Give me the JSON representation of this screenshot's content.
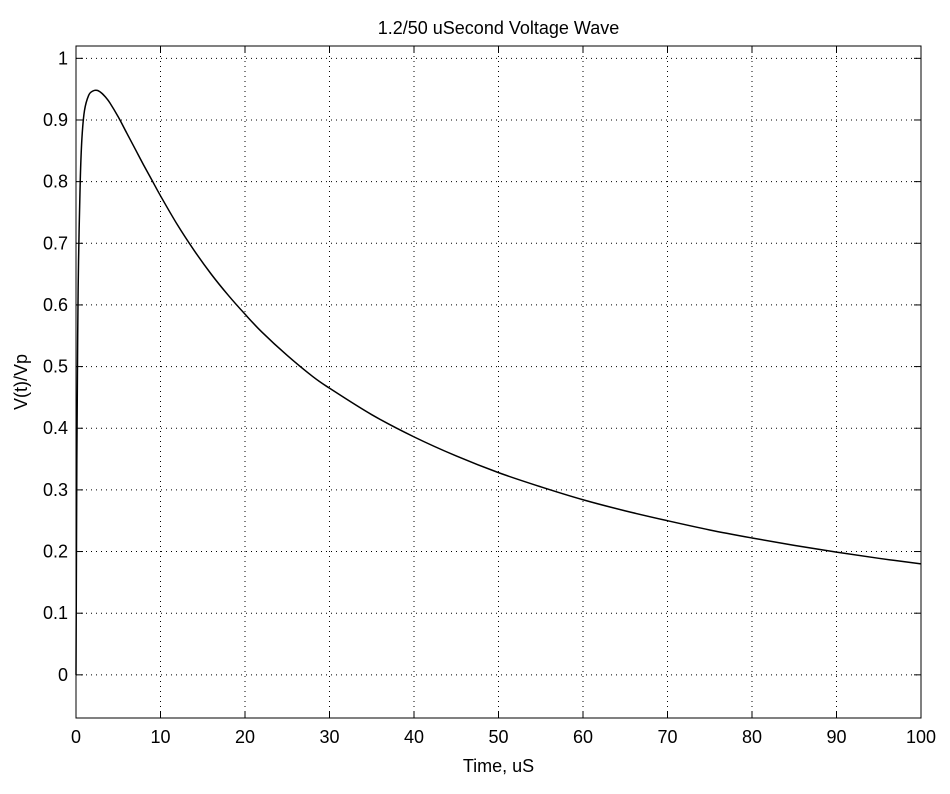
{
  "chart_data": {
    "type": "line",
    "title": "1.2/50 uSecond Voltage Wave",
    "xlabel": "Time, uS",
    "ylabel": "V(t)/Vp",
    "xlim": [
      0,
      100
    ],
    "ylim": [
      -0.07,
      1.02
    ],
    "grid": true,
    "grid_style": "dotted",
    "x_ticks": [
      0,
      10,
      20,
      30,
      40,
      50,
      60,
      70,
      80,
      90,
      100
    ],
    "y_ticks": [
      0,
      0.1,
      0.2,
      0.3,
      0.4,
      0.5,
      0.6,
      0.7,
      0.8,
      0.9,
      1
    ],
    "x_tick_labels": [
      "0",
      "10",
      "20",
      "30",
      "40",
      "50",
      "60",
      "70",
      "80",
      "90",
      "100"
    ],
    "y_tick_labels": [
      "0",
      "0.1",
      "0.2",
      "0.3",
      "0.4",
      "0.5",
      "0.6",
      "0.7",
      "0.8",
      "0.9",
      "1"
    ],
    "line_color": "#000000",
    "series": [
      {
        "x": [
          0,
          0.1,
          0.2,
          0.3,
          0.5,
          0.7,
          1.0,
          1.5,
          2.0,
          2.5,
          3.0,
          3.5,
          4.0,
          5.0,
          6.0,
          7.0,
          8.0,
          9.0,
          10,
          12,
          14,
          16,
          18,
          20,
          22,
          25,
          28,
          30,
          35,
          40,
          45,
          50,
          55,
          60,
          65,
          70,
          75,
          80,
          85,
          90,
          95,
          100
        ],
        "y": [
          0,
          0.35,
          0.55,
          0.67,
          0.8,
          0.87,
          0.915,
          0.94,
          0.947,
          0.948,
          0.944,
          0.937,
          0.928,
          0.905,
          0.879,
          0.853,
          0.827,
          0.802,
          0.777,
          0.73,
          0.688,
          0.65,
          0.616,
          0.585,
          0.556,
          0.518,
          0.484,
          0.465,
          0.422,
          0.386,
          0.355,
          0.328,
          0.305,
          0.284,
          0.266,
          0.25,
          0.235,
          0.222,
          0.21,
          0.199,
          0.189,
          0.18
        ]
      }
    ]
  }
}
